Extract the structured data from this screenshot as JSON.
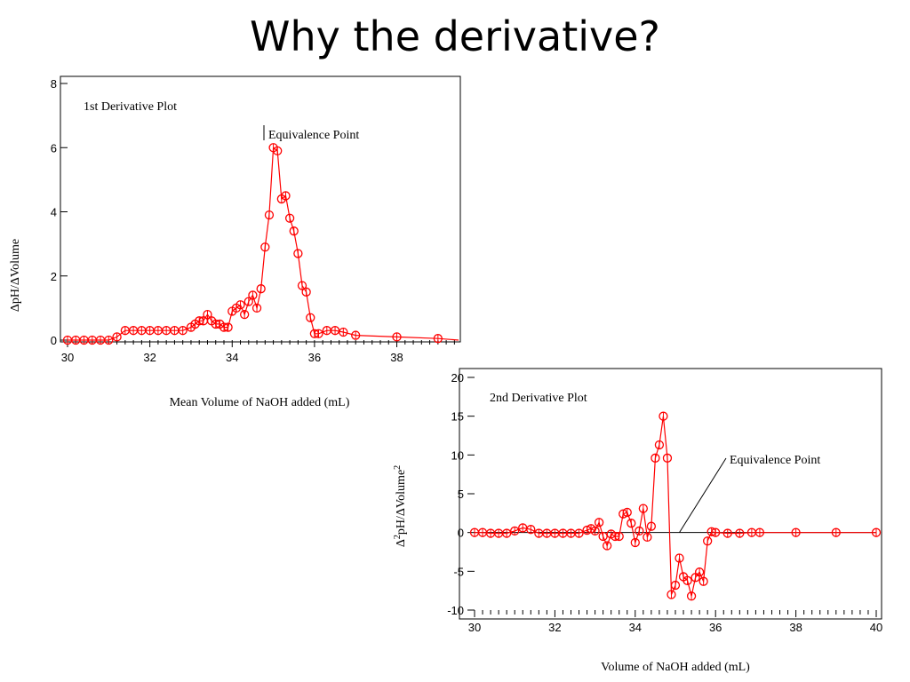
{
  "slide": {
    "title": "Why the derivative?"
  },
  "colors": {
    "series": "#ff0000",
    "axis": "#000000"
  },
  "chart_data": [
    {
      "type": "line",
      "title": "1st Derivative Plot",
      "xlabel": "Mean Volume of NaOH added (mL)",
      "ylabel": "ΔpH/ΔVolume",
      "xlim": [
        30,
        39.5
      ],
      "ylim": [
        0,
        8
      ],
      "x_ticks": [
        30,
        32,
        34,
        36,
        38
      ],
      "y_ticks": [
        0,
        2,
        4,
        6,
        8
      ],
      "grid": false,
      "annotation": {
        "text": "Equivalence Point",
        "x": 35.05,
        "y": 6.0
      },
      "series": [
        {
          "x": [
            30.0,
            30.2,
            30.4,
            30.6,
            30.8,
            31.0,
            31.2,
            31.4,
            31.6,
            31.8,
            32.0,
            32.2,
            32.4,
            32.6,
            32.8,
            33.0,
            33.1,
            33.2,
            33.3,
            33.4,
            33.5,
            33.6,
            33.7,
            33.8,
            33.9,
            34.0,
            34.1,
            34.2,
            34.3,
            34.4,
            34.5,
            34.6,
            34.7,
            34.8,
            34.9,
            35.0,
            35.1,
            35.2,
            35.3,
            35.4,
            35.5,
            35.6,
            35.7,
            35.8,
            35.9,
            36.0,
            36.1,
            36.3,
            36.5,
            36.7,
            37.0,
            38.0,
            39.0,
            39.5
          ],
          "y": [
            0.0,
            0.0,
            0.0,
            0.0,
            0.0,
            0.0,
            0.1,
            0.3,
            0.3,
            0.3,
            0.3,
            0.3,
            0.3,
            0.3,
            0.3,
            0.4,
            0.5,
            0.6,
            0.6,
            0.8,
            0.6,
            0.5,
            0.5,
            0.4,
            0.4,
            0.9,
            1.0,
            1.1,
            0.8,
            1.2,
            1.4,
            1.0,
            1.6,
            2.9,
            3.9,
            6.0,
            5.9,
            4.4,
            4.5,
            3.8,
            3.4,
            2.7,
            1.7,
            1.5,
            0.7,
            0.2,
            0.2,
            0.3,
            0.3,
            0.25,
            0.15,
            0.1,
            0.05,
            0.0
          ],
          "markers": [
            true,
            true,
            true,
            true,
            true,
            true,
            true,
            true,
            true,
            true,
            true,
            true,
            true,
            true,
            true,
            true,
            true,
            true,
            true,
            true,
            true,
            true,
            true,
            true,
            true,
            true,
            true,
            true,
            true,
            true,
            true,
            true,
            true,
            true,
            true,
            true,
            true,
            true,
            true,
            true,
            true,
            true,
            true,
            true,
            true,
            true,
            true,
            true,
            true,
            true,
            true,
            true,
            true,
            false
          ]
        }
      ]
    },
    {
      "type": "line",
      "title": "2nd Derivative Plot",
      "xlabel": "Volume of NaOH added (mL)",
      "ylabel": "Δ2pH/ΔVolume2",
      "xlim": [
        30,
        40
      ],
      "ylim": [
        -10,
        20
      ],
      "x_ticks": [
        30,
        32,
        34,
        36,
        38,
        40
      ],
      "y_ticks": [
        -10,
        -5,
        0,
        5,
        10,
        15,
        20
      ],
      "grid": false,
      "annotation": {
        "text": "Equivalence Point",
        "x": 35.1,
        "y": 0
      },
      "series": [
        {
          "x": [
            30.0,
            30.2,
            30.4,
            30.6,
            30.8,
            31.0,
            31.2,
            31.4,
            31.6,
            31.8,
            32.0,
            32.2,
            32.4,
            32.6,
            32.8,
            32.9,
            33.0,
            33.1,
            33.2,
            33.3,
            33.4,
            33.5,
            33.6,
            33.7,
            33.8,
            33.9,
            34.0,
            34.1,
            34.2,
            34.3,
            34.4,
            34.5,
            34.6,
            34.7,
            34.8,
            34.9,
            35.0,
            35.1,
            35.2,
            35.3,
            35.4,
            35.5,
            35.6,
            35.7,
            35.8,
            35.9,
            36.0,
            36.3,
            36.6,
            36.9,
            37.1,
            38.0,
            39.0,
            40.0
          ],
          "y": [
            0,
            0,
            -0.1,
            -0.1,
            -0.1,
            0.2,
            0.6,
            0.4,
            -0.1,
            -0.1,
            -0.1,
            -0.1,
            -0.1,
            -0.1,
            0.3,
            0.5,
            0.2,
            1.3,
            -0.5,
            -1.7,
            -0.2,
            -0.5,
            -0.5,
            2.4,
            2.6,
            1.2,
            -1.3,
            0.2,
            3.1,
            -0.6,
            0.8,
            9.6,
            11.3,
            15.0,
            9.6,
            -8.0,
            -6.8,
            -3.3,
            -5.7,
            -6.2,
            -8.2,
            -5.8,
            -5.1,
            -6.3,
            -1.1,
            0.1,
            0.0,
            -0.1,
            -0.1,
            0.0,
            0.0,
            0.0,
            0.0,
            0.0
          ],
          "markers": [
            true,
            true,
            true,
            true,
            true,
            true,
            true,
            true,
            true,
            true,
            true,
            true,
            true,
            true,
            true,
            true,
            true,
            true,
            true,
            true,
            true,
            true,
            true,
            true,
            true,
            true,
            true,
            true,
            true,
            true,
            true,
            true,
            true,
            true,
            true,
            true,
            true,
            true,
            true,
            true,
            true,
            true,
            true,
            true,
            true,
            true,
            true,
            true,
            true,
            true,
            true,
            true,
            true,
            true
          ]
        }
      ]
    }
  ]
}
